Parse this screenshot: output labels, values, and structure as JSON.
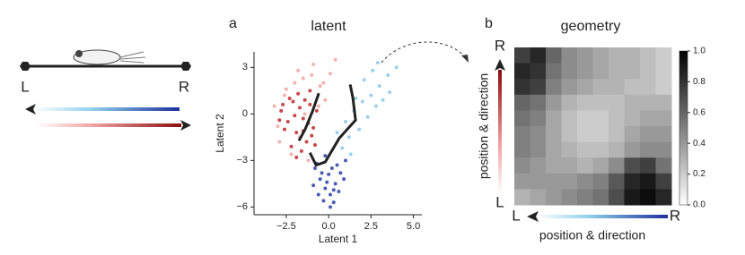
{
  "diagram": {
    "left_label": "L",
    "right_label": "R"
  },
  "chart_data": [
    {
      "type": "scatter",
      "panel": "a",
      "title": "latent",
      "xlabel": "Latent 1",
      "ylabel": "Latent 2",
      "xlim": [
        -4.4,
        5.5
      ],
      "ylim": [
        -6.5,
        4
      ],
      "xticks": [
        {
          "value": -2.5,
          "label": "−2.5"
        },
        {
          "value": 0,
          "label": "0.0"
        },
        {
          "value": 2.5,
          "label": "2.5"
        },
        {
          "value": 5,
          "label": "5.0"
        }
      ],
      "yticks": [
        3,
        0,
        {
          "value": -3,
          "label": "−3"
        },
        {
          "value": -6,
          "label": "−6"
        }
      ],
      "series": [
        {
          "style": "points",
          "color": "#f4a5a0",
          "x": [
            -3.2,
            -2.9,
            -2.5,
            -2.0,
            -1.5,
            -1.0,
            -0.5,
            -0.2,
            -3.0,
            -1.8,
            -0.6,
            -2.2,
            -1.2,
            0.1,
            -0.9,
            -2.6,
            -1.7,
            -0.3,
            0.4,
            -1.4
          ],
          "y": [
            0.5,
            -1.8,
            1.6,
            2.0,
            2.3,
            2.5,
            1.8,
            0.9,
            -0.8,
            2.8,
            0.5,
            -2.6,
            -3.0,
            2.6,
            3.2,
            1.2,
            -1.5,
            2.0,
            3.5,
            0.0
          ]
        },
        {
          "style": "points",
          "color": "#8ec8e8",
          "x": [
            1.0,
            1.5,
            2.0,
            2.5,
            3.0,
            3.5,
            1.2,
            1.8,
            2.3,
            2.8,
            0.8,
            1.6,
            2.6,
            3.2,
            0.5,
            2.1,
            1.3,
            2.9,
            4.0,
            3.6
          ],
          "y": [
            -0.5,
            0.2,
            0.8,
            1.2,
            1.8,
            2.5,
            -1.5,
            -1.0,
            -0.2,
            0.5,
            -2.2,
            1.0,
            2.8,
            0.9,
            -1.2,
            2.2,
            -2.6,
            3.3,
            3.0,
            1.4
          ]
        },
        {
          "style": "points",
          "color": "#c0282a",
          "x": [
            -2.8,
            -2.4,
            -2.1,
            -1.9,
            -1.7,
            -1.5,
            -1.3,
            -1.1,
            -0.9,
            -2.6,
            -2.2,
            -1.8,
            -1.4,
            -1.0,
            -0.7,
            -2.9,
            -2.0,
            -1.6,
            -1.2,
            -0.8,
            -2.3,
            -1.5,
            -1.9,
            -1.1,
            -2.7
          ],
          "y": [
            0.2,
            -0.5,
            0.8,
            -1.2,
            0.4,
            -0.3,
            -1.8,
            0.6,
            -0.9,
            -1.0,
            -2.1,
            1.3,
            0.9,
            -1.4,
            0.2,
            -0.4,
            -0.1,
            -2.4,
            -0.6,
            -2.0,
            1.0,
            -1.1,
            -2.8,
            1.5,
            0.6
          ]
        },
        {
          "style": "points",
          "color": "#2c3fa8",
          "x": [
            -0.8,
            -0.5,
            -0.2,
            0.1,
            0.4,
            0.7,
            -0.9,
            -0.3,
            0.0,
            0.3,
            0.6,
            -0.6,
            -0.1,
            0.2,
            0.9,
            -0.4,
            0.5,
            -0.7,
            0.1,
            0.3,
            1.0,
            -0.2
          ],
          "y": [
            -3.5,
            -4.2,
            -4.8,
            -5.2,
            -4.5,
            -3.8,
            -4.6,
            -5.6,
            -3.9,
            -4.9,
            -5.0,
            -5.2,
            -4.4,
            -3.5,
            -4.2,
            -3.8,
            -3.3,
            -3.2,
            -6.0,
            -5.7,
            -3.0,
            -2.7
          ]
        },
        {
          "style": "line",
          "color": "#222222",
          "x": [
            -0.58,
            -0.95,
            -1.38,
            -1.75,
            null,
            -1.1,
            -0.74,
            -0.2,
            0.63,
            1.59,
            1.43,
            1.27
          ],
          "y": [
            1.33,
            0.17,
            -0.98,
            -1.73,
            null,
            -2.5,
            -3.3,
            -3.1,
            -1.56,
            -0.4,
            1.04,
            1.9
          ]
        }
      ]
    },
    {
      "type": "heatmap",
      "panel": "b",
      "title": "geometry",
      "xlabel": "position & direction",
      "ylabel": "position & direction",
      "x_start": "L",
      "x_end": "R",
      "y_start": "L",
      "y_end": "R",
      "clim": [
        0,
        1
      ],
      "cticks": [
        {
          "value": 0,
          "label": "0.0"
        },
        {
          "value": 0.2,
          "label": "0.2"
        },
        {
          "value": 0.4,
          "label": "0.4"
        },
        {
          "value": 0.6,
          "label": "0.6"
        },
        {
          "value": 0.8,
          "label": "0.8"
        },
        {
          "value": 1,
          "label": "1.0"
        }
      ],
      "values": [
        [
          0.75,
          0.85,
          0.6,
          0.45,
          0.4,
          0.35,
          0.3,
          0.3,
          0.25,
          0.2
        ],
        [
          0.85,
          0.8,
          0.55,
          0.45,
          0.4,
          0.35,
          0.3,
          0.3,
          0.25,
          0.2
        ],
        [
          0.8,
          0.75,
          0.5,
          0.4,
          0.35,
          0.3,
          0.3,
          0.25,
          0.25,
          0.2
        ],
        [
          0.6,
          0.55,
          0.4,
          0.3,
          0.25,
          0.25,
          0.25,
          0.3,
          0.3,
          0.3
        ],
        [
          0.55,
          0.5,
          0.35,
          0.25,
          0.2,
          0.2,
          0.25,
          0.3,
          0.35,
          0.35
        ],
        [
          0.5,
          0.45,
          0.35,
          0.25,
          0.2,
          0.2,
          0.25,
          0.35,
          0.4,
          0.4
        ],
        [
          0.5,
          0.45,
          0.35,
          0.3,
          0.25,
          0.25,
          0.3,
          0.4,
          0.45,
          0.45
        ],
        [
          0.45,
          0.4,
          0.35,
          0.35,
          0.3,
          0.35,
          0.45,
          0.7,
          0.75,
          0.55
        ],
        [
          0.4,
          0.4,
          0.4,
          0.4,
          0.45,
          0.5,
          0.65,
          0.85,
          0.9,
          0.75
        ],
        [
          0.3,
          0.35,
          0.4,
          0.45,
          0.5,
          0.55,
          0.7,
          0.9,
          0.95,
          0.85
        ]
      ]
    }
  ]
}
